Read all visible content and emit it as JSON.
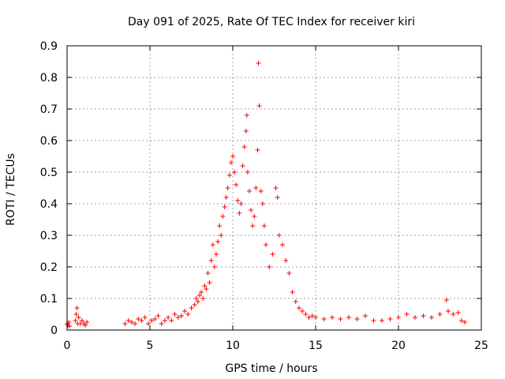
{
  "chart_data": {
    "type": "scatter",
    "title": "Day 091 of 2025, Rate Of TEC Index for receiver kiri",
    "xlabel": "GPS time / hours",
    "ylabel": "ROTI / TECUs",
    "xlim": [
      0,
      25
    ],
    "ylim": [
      0,
      0.9
    ],
    "xticks": [
      0,
      5,
      10,
      15,
      20,
      25
    ],
    "yticks": [
      0,
      0.1,
      0.2,
      0.3,
      0.4,
      0.5,
      0.6,
      0.7,
      0.8,
      0.9
    ],
    "grid": true,
    "marker": "+",
    "color": "#ff0000",
    "series": [
      {
        "name": "ROTI",
        "points": [
          [
            0.0,
            0.02
          ],
          [
            0.05,
            0.015
          ],
          [
            0.1,
            0.025
          ],
          [
            0.15,
            0.012
          ],
          [
            0.6,
            0.07
          ],
          [
            0.55,
            0.05
          ],
          [
            0.5,
            0.03
          ],
          [
            0.65,
            0.02
          ],
          [
            0.7,
            0.04
          ],
          [
            0.8,
            0.02
          ],
          [
            0.9,
            0.03
          ],
          [
            1.0,
            0.02
          ],
          [
            1.1,
            0.015
          ],
          [
            1.2,
            0.025
          ],
          [
            3.5,
            0.02
          ],
          [
            3.7,
            0.03
          ],
          [
            3.9,
            0.025
          ],
          [
            4.1,
            0.02
          ],
          [
            4.3,
            0.035
          ],
          [
            4.5,
            0.03
          ],
          [
            4.7,
            0.04
          ],
          [
            4.9,
            0.02
          ],
          [
            5.1,
            0.03
          ],
          [
            5.3,
            0.035
          ],
          [
            5.5,
            0.045
          ],
          [
            5.7,
            0.02
          ],
          [
            5.9,
            0.03
          ],
          [
            6.1,
            0.04
          ],
          [
            6.3,
            0.03
          ],
          [
            6.5,
            0.05
          ],
          [
            6.7,
            0.04
          ],
          [
            6.9,
            0.045
          ],
          [
            7.1,
            0.06
          ],
          [
            7.3,
            0.05
          ],
          [
            7.5,
            0.07
          ],
          [
            7.7,
            0.08
          ],
          [
            7.8,
            0.1
          ],
          [
            7.9,
            0.09
          ],
          [
            8.0,
            0.11
          ],
          [
            8.1,
            0.12
          ],
          [
            8.2,
            0.1
          ],
          [
            8.3,
            0.14
          ],
          [
            8.4,
            0.13
          ],
          [
            8.5,
            0.18
          ],
          [
            8.6,
            0.15
          ],
          [
            8.7,
            0.22
          ],
          [
            8.8,
            0.27
          ],
          [
            8.9,
            0.2
          ],
          [
            9.0,
            0.24
          ],
          [
            9.1,
            0.28
          ],
          [
            9.2,
            0.33
          ],
          [
            9.3,
            0.3
          ],
          [
            9.4,
            0.36
          ],
          [
            9.5,
            0.39
          ],
          [
            9.6,
            0.42
          ],
          [
            9.7,
            0.45
          ],
          [
            9.8,
            0.49
          ],
          [
            9.9,
            0.53
          ],
          [
            10.0,
            0.55
          ],
          [
            10.1,
            0.5
          ],
          [
            10.2,
            0.46
          ],
          [
            10.3,
            0.41
          ],
          [
            10.4,
            0.37
          ],
          [
            10.5,
            0.4
          ],
          [
            10.6,
            0.52
          ],
          [
            10.7,
            0.58
          ],
          [
            10.8,
            0.63
          ],
          [
            10.85,
            0.68
          ],
          [
            10.9,
            0.5
          ],
          [
            11.0,
            0.44
          ],
          [
            11.1,
            0.38
          ],
          [
            11.2,
            0.33
          ],
          [
            11.3,
            0.36
          ],
          [
            11.4,
            0.45
          ],
          [
            11.5,
            0.57
          ],
          [
            11.6,
            0.71
          ],
          [
            11.55,
            0.845
          ],
          [
            11.7,
            0.44
          ],
          [
            11.8,
            0.4
          ],
          [
            11.9,
            0.33
          ],
          [
            12.0,
            0.27
          ],
          [
            12.2,
            0.2
          ],
          [
            12.4,
            0.24
          ],
          [
            12.6,
            0.45
          ],
          [
            12.7,
            0.42
          ],
          [
            12.8,
            0.3
          ],
          [
            13.0,
            0.27
          ],
          [
            13.2,
            0.22
          ],
          [
            13.4,
            0.18
          ],
          [
            13.6,
            0.12
          ],
          [
            13.8,
            0.09
          ],
          [
            14.0,
            0.07
          ],
          [
            14.2,
            0.06
          ],
          [
            14.4,
            0.05
          ],
          [
            14.6,
            0.04
          ],
          [
            14.8,
            0.045
          ],
          [
            15.0,
            0.04
          ],
          [
            15.5,
            0.035
          ],
          [
            16.0,
            0.04
          ],
          [
            16.5,
            0.035
          ],
          [
            17.0,
            0.04
          ],
          [
            17.5,
            0.035
          ],
          [
            18.0,
            0.045
          ],
          [
            18.5,
            0.03
          ],
          [
            19.0,
            0.03
          ],
          [
            19.5,
            0.035
          ],
          [
            20.0,
            0.04
          ],
          [
            20.5,
            0.05
          ],
          [
            21.0,
            0.04
          ],
          [
            21.5,
            0.045
          ],
          [
            22.0,
            0.04
          ],
          [
            22.5,
            0.05
          ],
          [
            22.9,
            0.095
          ],
          [
            23.0,
            0.06
          ],
          [
            23.3,
            0.05
          ],
          [
            23.6,
            0.055
          ],
          [
            23.8,
            0.03
          ],
          [
            24.0,
            0.025
          ]
        ]
      }
    ]
  }
}
